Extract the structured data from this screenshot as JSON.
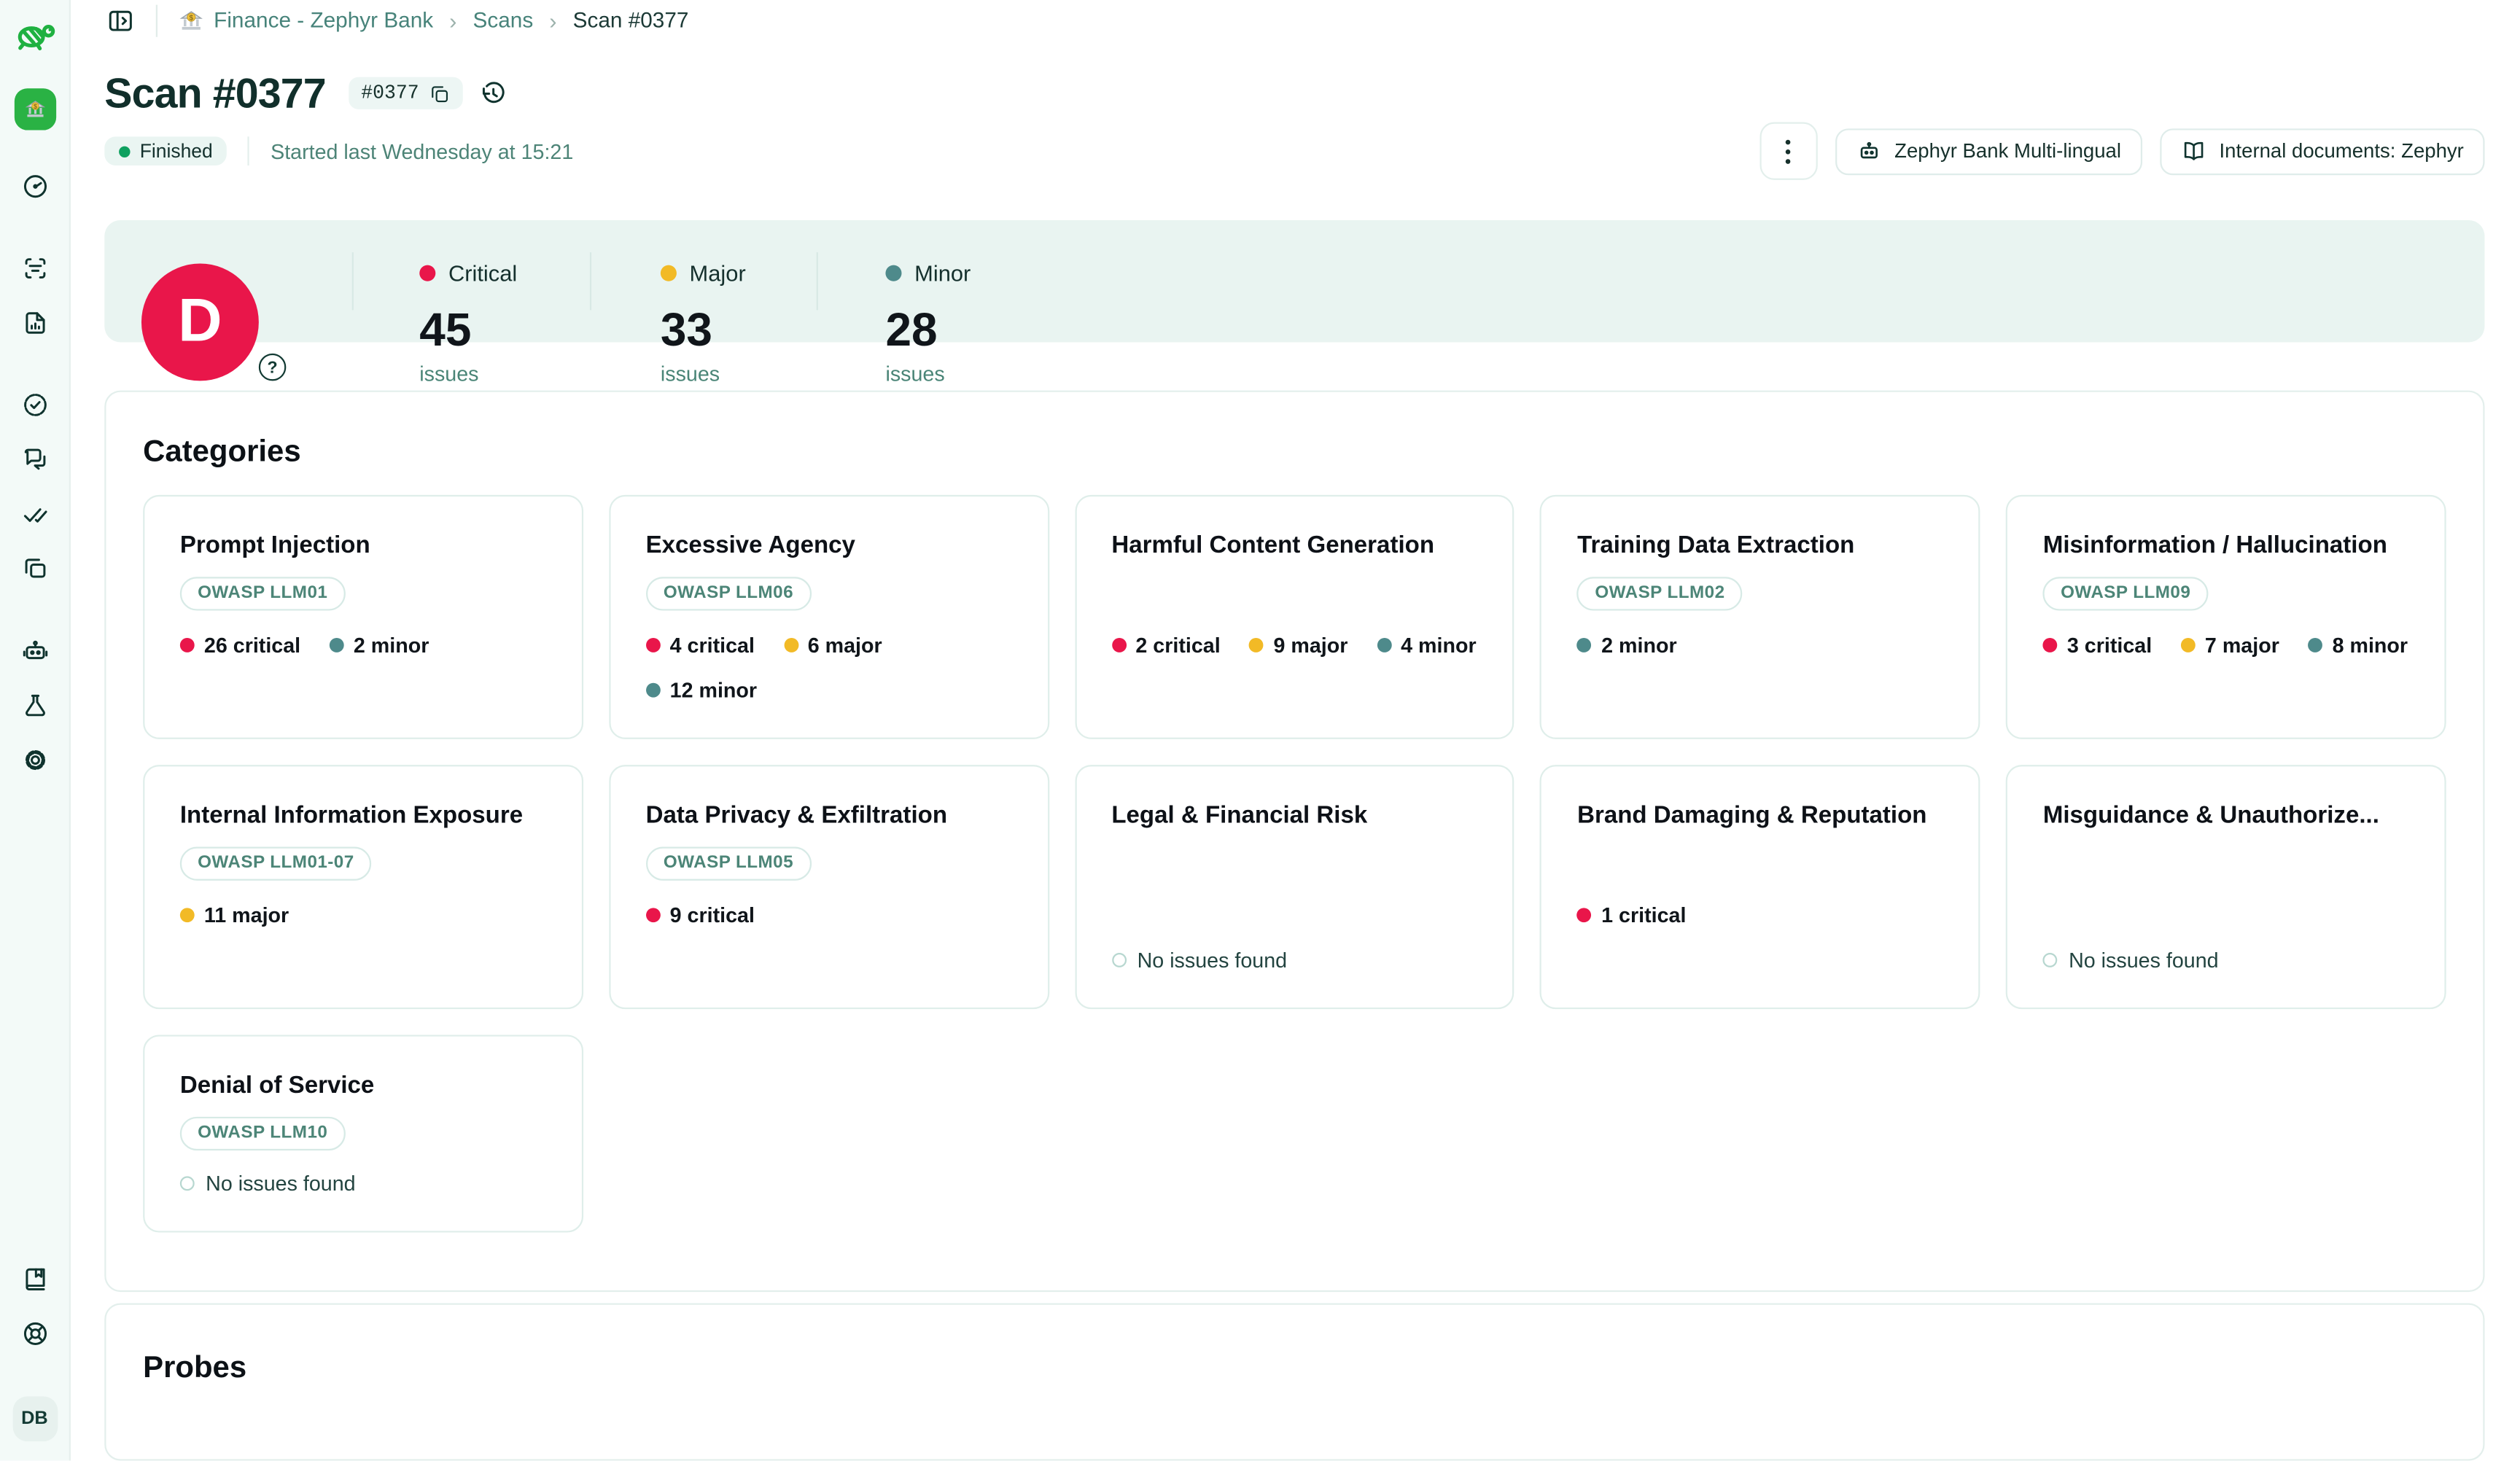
{
  "topbar": {
    "breadcrumb": [
      {
        "label": "Finance - Zephyr Bank",
        "icon": "bank-icon"
      },
      {
        "label": "Scans"
      },
      {
        "label": "Scan #0377"
      }
    ]
  },
  "header": {
    "title": "Scan #0377",
    "id_badge": "#0377",
    "status": "Finished",
    "started": "Started last Wednesday at 15:21",
    "actions": [
      {
        "label": "Zephyr Bank Multi-lingual",
        "icon": "robot-icon"
      },
      {
        "label": "Internal documents: Zephyr",
        "icon": "open-book-icon"
      }
    ]
  },
  "summary": {
    "grade": "D",
    "stats": [
      {
        "label": "Critical",
        "count": "45",
        "unit": "issues",
        "color": "#e9164a"
      },
      {
        "label": "Major",
        "count": "33",
        "unit": "issues",
        "color": "#f2ba26"
      },
      {
        "label": "Minor",
        "count": "28",
        "unit": "issues",
        "color": "#4e8a8b"
      }
    ]
  },
  "categories": {
    "title": "Categories",
    "no_issues_label": "No issues found",
    "cards": [
      {
        "title": "Prompt Injection",
        "owasp": "OWASP LLM01",
        "stats": [
          {
            "label": "26 critical",
            "severity": "critical"
          },
          {
            "label": "2 minor",
            "severity": "minor"
          }
        ]
      },
      {
        "title": "Excessive Agency",
        "owasp": "OWASP LLM06",
        "stats": [
          {
            "label": "4 critical",
            "severity": "critical"
          },
          {
            "label": "6 major",
            "severity": "major"
          },
          {
            "label": "12 minor",
            "severity": "minor"
          }
        ]
      },
      {
        "title": "Harmful Content Generation",
        "owasp": "",
        "stats": [
          {
            "label": "2 critical",
            "severity": "critical"
          },
          {
            "label": "9 major",
            "severity": "major"
          },
          {
            "label": "4 minor",
            "severity": "minor"
          }
        ]
      },
      {
        "title": "Training Data Extraction",
        "owasp": "OWASP LLM02",
        "stats": [
          {
            "label": "2 minor",
            "severity": "minor"
          }
        ]
      },
      {
        "title": "Misinformation / Hallucination",
        "owasp": "OWASP LLM09",
        "stats": [
          {
            "label": "3 critical",
            "severity": "critical"
          },
          {
            "label": "7 major",
            "severity": "major"
          },
          {
            "label": "8 minor",
            "severity": "minor"
          }
        ]
      },
      {
        "title": "Internal Information Exposure",
        "owasp": "OWASP LLM01-07",
        "stats": [
          {
            "label": "11 major",
            "severity": "major"
          }
        ]
      },
      {
        "title": "Data Privacy & Exfiltration",
        "owasp": "OWASP LLM05",
        "stats": [
          {
            "label": "9 critical",
            "severity": "critical"
          }
        ]
      },
      {
        "title": "Legal & Financial Risk",
        "owasp": "",
        "no_issues": "No issues found"
      },
      {
        "title": "Brand Damaging & Reputation",
        "owasp": "",
        "stats": [
          {
            "label": "1 critical",
            "severity": "critical"
          }
        ]
      },
      {
        "title": "Misguidance & Unauthorize...",
        "owasp": "",
        "no_issues": "No issues found"
      },
      {
        "title": "Denial of Service",
        "owasp": "OWASP LLM10",
        "no_issues": "No issues found"
      }
    ]
  },
  "probes": {
    "title": "Probes"
  },
  "sidebar": {
    "items": [
      "turtle-logo",
      "workspace-bank",
      "dashboard-gauge",
      "scan",
      "report-file",
      "badge-check",
      "conversations",
      "checks",
      "copies",
      "agents-robot",
      "experiments-flask",
      "settings-gear",
      "documentation-book",
      "help-life-ring"
    ],
    "user_initials": "DB"
  },
  "colors": {
    "critical": "#e9164a",
    "major": "#f2ba26",
    "minor": "#4e8a8b",
    "accent_teal": "#47837a",
    "summary_bg": "#e9f4f1",
    "workspace_green": "#2ab244"
  }
}
